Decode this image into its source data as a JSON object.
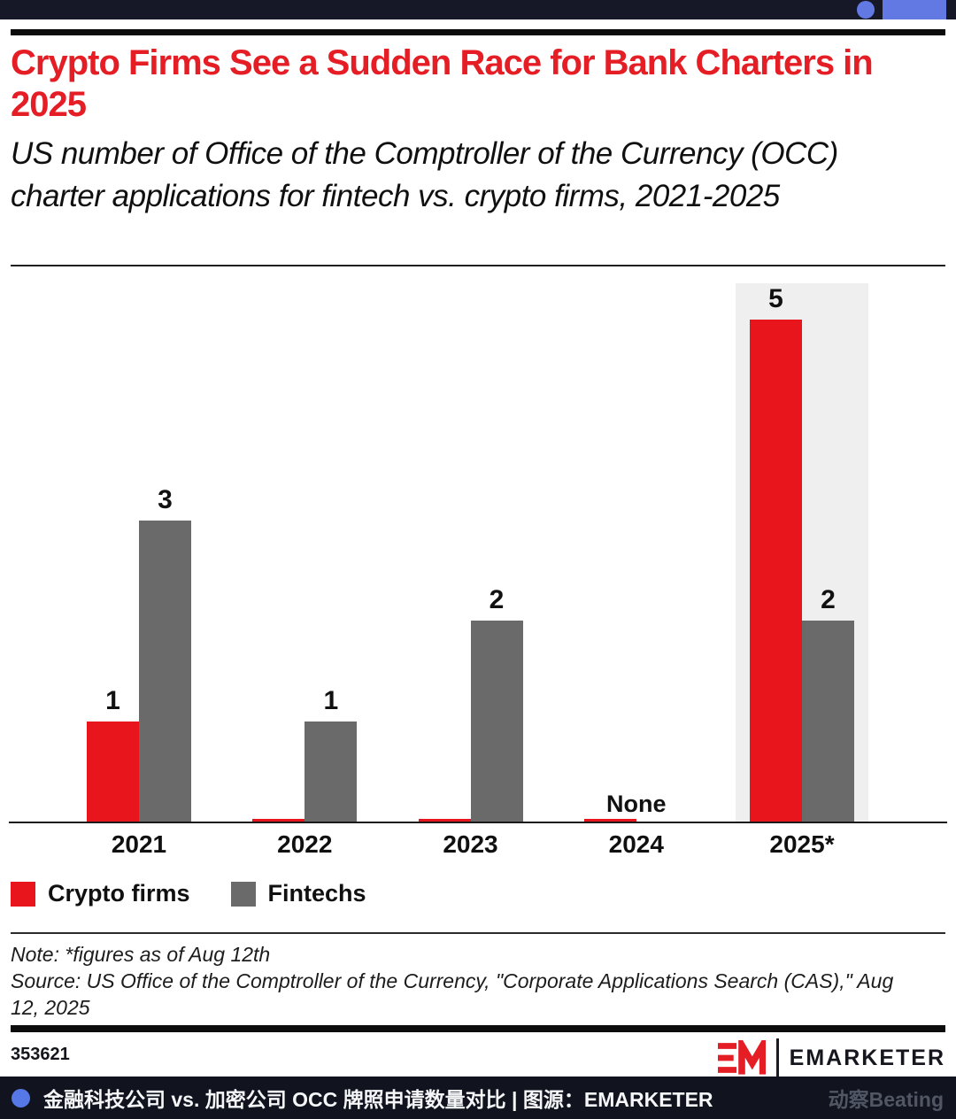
{
  "header": {
    "title": "Crypto Firms See a Sudden Race for Bank Charters in 2025",
    "subtitle": "US number of Office of the Comptroller of the Currency (OCC) charter applications for fintech vs. crypto firms, 2021-2025"
  },
  "chart_data": {
    "type": "bar",
    "title": "Crypto Firms See a Sudden Race for Bank Charters in 2025",
    "categories": [
      "2021",
      "2022",
      "2023",
      "2024",
      "2025*"
    ],
    "series": [
      {
        "name": "Crypto firms",
        "color": "#e8151d",
        "values": [
          1,
          0,
          0,
          0,
          5
        ]
      },
      {
        "name": "Fintechs",
        "color": "#6a6a6a",
        "values": [
          3,
          1,
          2,
          0,
          2
        ]
      }
    ],
    "annotations": {
      "2024": "None"
    },
    "highlighted_category": "2025*",
    "highlight_color": "#efefef",
    "ylim": [
      0,
      5
    ],
    "grid": false,
    "value_labels": true,
    "legend_position": "bottom-left"
  },
  "notes": {
    "note": "Note: *figures as of Aug 12th",
    "source": "Source: US Office of the Comptroller of the Currency, \"Corporate Applications Search (CAS),\" Aug 12, 2025"
  },
  "footer_meta": {
    "chart_id": "353621",
    "logo_mark": "EM",
    "wordmark": "EMARKETER"
  },
  "footer": {
    "caption": "金融科技公司 vs. 加密公司 OCC 牌照申请数量对比 | 图源：EMARKETER",
    "watermark": "动察Beating"
  },
  "colors": {
    "brand_red": "#e51d25",
    "accent_blue": "#6278e2",
    "topbar_bg": "#161828",
    "footer_bg": "#11131e",
    "axis": "#1a1a1a"
  }
}
